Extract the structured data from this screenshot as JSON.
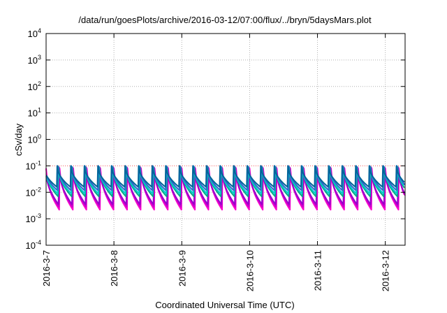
{
  "chart_data": {
    "type": "line",
    "title": "/data/run/goesPlots/archive/2016-03-12/07:00/flux/../bryn/5daysMars.plot",
    "xlabel": "Coordinated Universal Time (UTC)",
    "ylabel": "cSv/day",
    "yscale": "log",
    "ylim": [
      0.0001,
      10000
    ],
    "y_ticks": [
      {
        "base": "10",
        "exp": "-4"
      },
      {
        "base": "10",
        "exp": "-3"
      },
      {
        "base": "10",
        "exp": "-2"
      },
      {
        "base": "10",
        "exp": "-1"
      },
      {
        "base": "10",
        "exp": "0"
      },
      {
        "base": "10",
        "exp": "1"
      },
      {
        "base": "10",
        "exp": "2"
      },
      {
        "base": "10",
        "exp": "3"
      },
      {
        "base": "10",
        "exp": "4"
      }
    ],
    "xlim": [
      "2016-03-07",
      "2016-03-12 07:00"
    ],
    "x_ticks": [
      "2016-3-7",
      "2016-3-8",
      "2016-3-9",
      "2016-3-10",
      "2016-3-11",
      "2016-3-12"
    ],
    "grid": true,
    "threshold_line": {
      "value": 0.1,
      "color": "#ff6666"
    },
    "sawtooth_period_hours": 4.8,
    "series": [
      {
        "color": "#ff00cc",
        "peak": 0.08,
        "trough": 0.0022
      },
      {
        "color": "#cc00cc",
        "peak": 0.085,
        "trough": 0.0028
      },
      {
        "color": "#9900cc",
        "peak": 0.09,
        "trough": 0.0035
      },
      {
        "color": "#00aa88",
        "peak": 0.09,
        "trough": 0.007
      },
      {
        "color": "#00cccc",
        "peak": 0.095,
        "trough": 0.009
      },
      {
        "color": "#3366cc",
        "peak": 0.1,
        "trough": 0.012
      },
      {
        "color": "#006699",
        "peak": 0.1,
        "trough": 0.016
      }
    ]
  }
}
